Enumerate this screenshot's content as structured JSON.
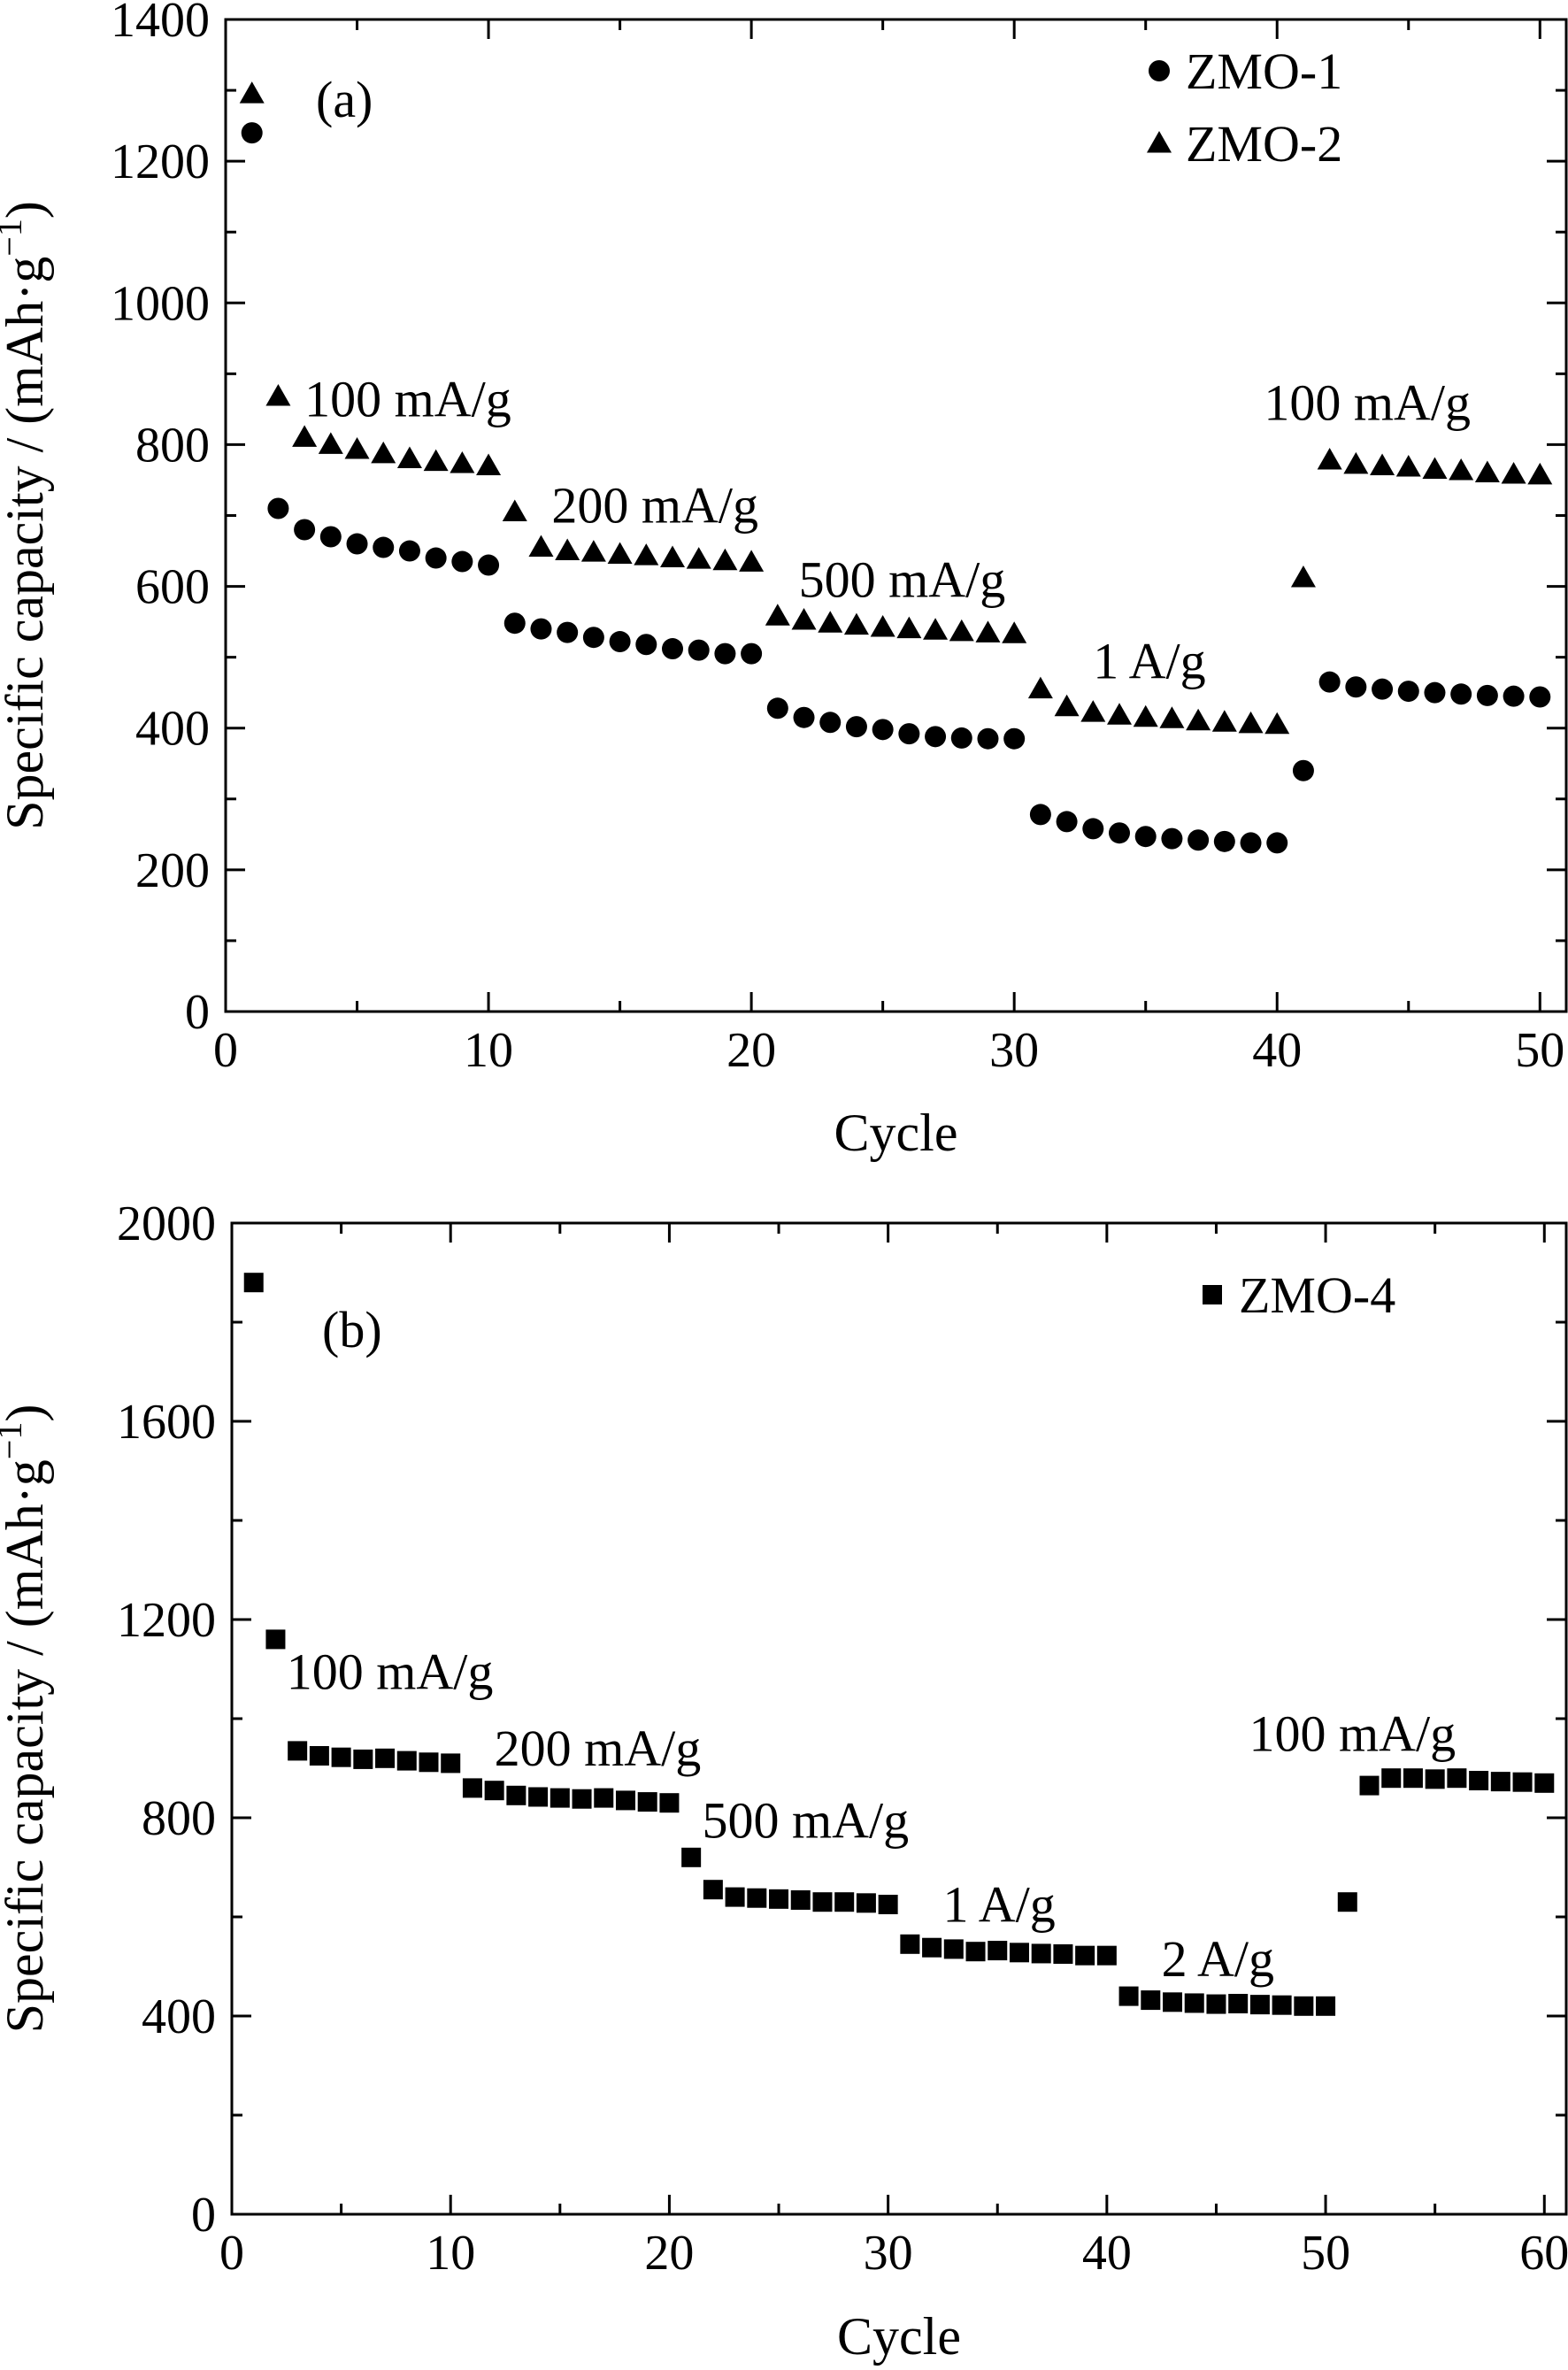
{
  "chart_data": [
    {
      "type": "scatter",
      "panel_label": "(a)",
      "xlabel": "Cycle",
      "ylabel": "Specific capacity / (mAh·g",
      "ylabel_sup": "−1",
      "ylabel_close": ")",
      "xlim": [
        0,
        51
      ],
      "ylim": [
        0,
        1400
      ],
      "xticks": [
        0,
        10,
        20,
        30,
        40,
        50
      ],
      "yticks": [
        0,
        200,
        400,
        600,
        800,
        1000,
        1200,
        1400
      ],
      "legend_position": "top-right",
      "series": [
        {
          "name": "ZMO-1",
          "marker": "circle",
          "x": [
            1,
            2,
            3,
            4,
            5,
            6,
            7,
            8,
            9,
            10,
            11,
            12,
            13,
            14,
            15,
            16,
            17,
            18,
            19,
            20,
            21,
            22,
            23,
            24,
            25,
            26,
            27,
            28,
            29,
            30,
            31,
            32,
            33,
            34,
            35,
            36,
            37,
            38,
            39,
            40,
            41,
            42,
            43,
            44,
            45,
            46,
            47,
            48,
            49,
            50
          ],
          "y": [
            1240,
            710,
            680,
            670,
            660,
            655,
            650,
            640,
            635,
            630,
            548,
            540,
            535,
            528,
            522,
            518,
            512,
            510,
            505,
            505,
            428,
            415,
            408,
            402,
            398,
            392,
            388,
            386,
            385,
            385,
            278,
            268,
            258,
            252,
            247,
            244,
            242,
            240,
            238,
            238,
            340,
            465,
            458,
            455,
            452,
            450,
            448,
            446,
            445,
            444
          ]
        },
        {
          "name": "ZMO-2",
          "marker": "triangle",
          "x": [
            1,
            2,
            3,
            4,
            5,
            6,
            7,
            8,
            9,
            10,
            11,
            12,
            13,
            14,
            15,
            16,
            17,
            18,
            19,
            20,
            21,
            22,
            23,
            24,
            25,
            26,
            27,
            28,
            29,
            30,
            31,
            32,
            33,
            34,
            35,
            36,
            37,
            38,
            39,
            40,
            41,
            42,
            43,
            44,
            45,
            46,
            47,
            48,
            49,
            50
          ],
          "y": [
            1295,
            868,
            810,
            800,
            793,
            787,
            780,
            776,
            773,
            770,
            705,
            655,
            650,
            648,
            645,
            643,
            640,
            638,
            636,
            634,
            558,
            552,
            548,
            545,
            542,
            540,
            538,
            536,
            534,
            533,
            455,
            430,
            422,
            418,
            415,
            413,
            410,
            408,
            406,
            405,
            612,
            778,
            772,
            770,
            768,
            765,
            763,
            760,
            758,
            757
          ]
        }
      ],
      "annotations": [
        {
          "text": "100 mA/g",
          "x": 3,
          "y": 840
        },
        {
          "text": "200 mA/g",
          "x": 12.4,
          "y": 690
        },
        {
          "text": "500 mA/g",
          "x": 21.8,
          "y": 585
        },
        {
          "text": "1 A/g",
          "x": 33,
          "y": 470
        },
        {
          "text": "100 mA/g",
          "x": 39.5,
          "y": 835
        }
      ]
    },
    {
      "type": "scatter",
      "panel_label": "(b)",
      "xlabel": "Cycle",
      "ylabel": "Specific capacity / (mAh·g",
      "ylabel_sup": "−1",
      "ylabel_close": ")",
      "xlim": [
        0,
        61
      ],
      "ylim": [
        0,
        2000
      ],
      "xticks": [
        0,
        10,
        20,
        30,
        40,
        50,
        60
      ],
      "yticks": [
        0,
        400,
        800,
        1200,
        1600,
        2000
      ],
      "legend_position": "top-right",
      "series": [
        {
          "name": "ZMO-4",
          "marker": "square",
          "x": [
            1,
            2,
            3,
            4,
            5,
            6,
            7,
            8,
            9,
            10,
            11,
            12,
            13,
            14,
            15,
            16,
            17,
            18,
            19,
            20,
            21,
            22,
            23,
            24,
            25,
            26,
            27,
            28,
            29,
            30,
            31,
            32,
            33,
            34,
            35,
            36,
            37,
            38,
            39,
            40,
            41,
            42,
            43,
            44,
            45,
            46,
            47,
            48,
            49,
            50,
            51,
            52,
            53,
            54,
            55,
            56,
            57,
            58,
            59,
            60
          ],
          "y": [
            1880,
            1160,
            935,
            925,
            922,
            918,
            920,
            915,
            912,
            910,
            860,
            855,
            845,
            842,
            840,
            838,
            840,
            835,
            832,
            830,
            720,
            655,
            640,
            638,
            636,
            634,
            630,
            630,
            628,
            625,
            545,
            538,
            535,
            530,
            532,
            528,
            526,
            525,
            522,
            522,
            440,
            432,
            428,
            426,
            424,
            425,
            423,
            422,
            420,
            420,
            630,
            865,
            880,
            880,
            878,
            880,
            875,
            873,
            872,
            870
          ]
        }
      ],
      "annotations": [
        {
          "text": "100 mA/g",
          "x": 2.5,
          "y": 1060
        },
        {
          "text": "200 mA/g",
          "x": 12,
          "y": 905
        },
        {
          "text": "500 mA/g",
          "x": 21.5,
          "y": 760
        },
        {
          "text": "1 A/g",
          "x": 32.5,
          "y": 590
        },
        {
          "text": "2 A/g",
          "x": 42.5,
          "y": 480
        },
        {
          "text": "100 mA/g",
          "x": 46.5,
          "y": 935
        }
      ]
    }
  ]
}
